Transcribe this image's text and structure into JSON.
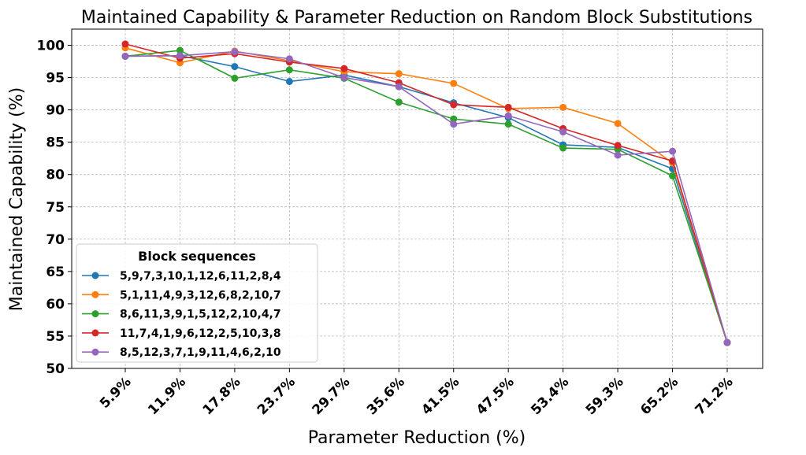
{
  "chart_data": {
    "type": "line",
    "title": "Maintained Capability & Parameter Reduction on Random Block Substitutions",
    "xlabel": "Parameter Reduction (%)",
    "ylabel": "Maintained Capability (%)",
    "categories": [
      "5.9%",
      "11.9%",
      "17.8%",
      "23.7%",
      "29.7%",
      "35.6%",
      "41.5%",
      "47.5%",
      "53.4%",
      "59.3%",
      "65.2%",
      "71.2%"
    ],
    "ylim": [
      50,
      102.5
    ],
    "yticks": [
      50,
      55,
      60,
      65,
      70,
      75,
      80,
      85,
      90,
      95,
      100
    ],
    "grid": true,
    "legend": {
      "title": "Block sequences",
      "placement": "lower-left"
    },
    "series": [
      {
        "name": "5,9,7,3,10,1,12,6,11,2,8,4",
        "color": "#1f77b4",
        "values": [
          98.3,
          98.4,
          96.7,
          94.4,
          95.4,
          93.6,
          91.1,
          88.8,
          84.6,
          84.2,
          80.9,
          54.0
        ]
      },
      {
        "name": "5,1,11,4,9,3,12,6,8,2,10,7",
        "color": "#ff7f0e",
        "values": [
          99.6,
          97.3,
          99.1,
          97.6,
          95.9,
          95.6,
          94.1,
          90.2,
          90.4,
          87.9,
          81.8,
          54.0
        ]
      },
      {
        "name": "8,6,11,3,9,1,5,12,2,10,4,7",
        "color": "#2ca02c",
        "values": [
          98.3,
          99.2,
          94.9,
          96.2,
          94.9,
          91.2,
          88.6,
          87.8,
          84.1,
          83.9,
          79.8,
          54.0
        ]
      },
      {
        "name": "11,7,4,1,9,6,12,2,5,10,3,8",
        "color": "#d62728",
        "values": [
          100.2,
          98.0,
          98.7,
          97.4,
          96.4,
          94.2,
          90.8,
          90.4,
          87.1,
          84.5,
          82.1,
          54.0
        ]
      },
      {
        "name": "8,5,12,3,7,1,9,11,4,6,2,10",
        "color": "#9467bd",
        "values": [
          98.3,
          98.4,
          99.0,
          97.9,
          95.0,
          93.6,
          87.8,
          89.1,
          86.6,
          83.0,
          83.6,
          54.0
        ]
      }
    ]
  }
}
